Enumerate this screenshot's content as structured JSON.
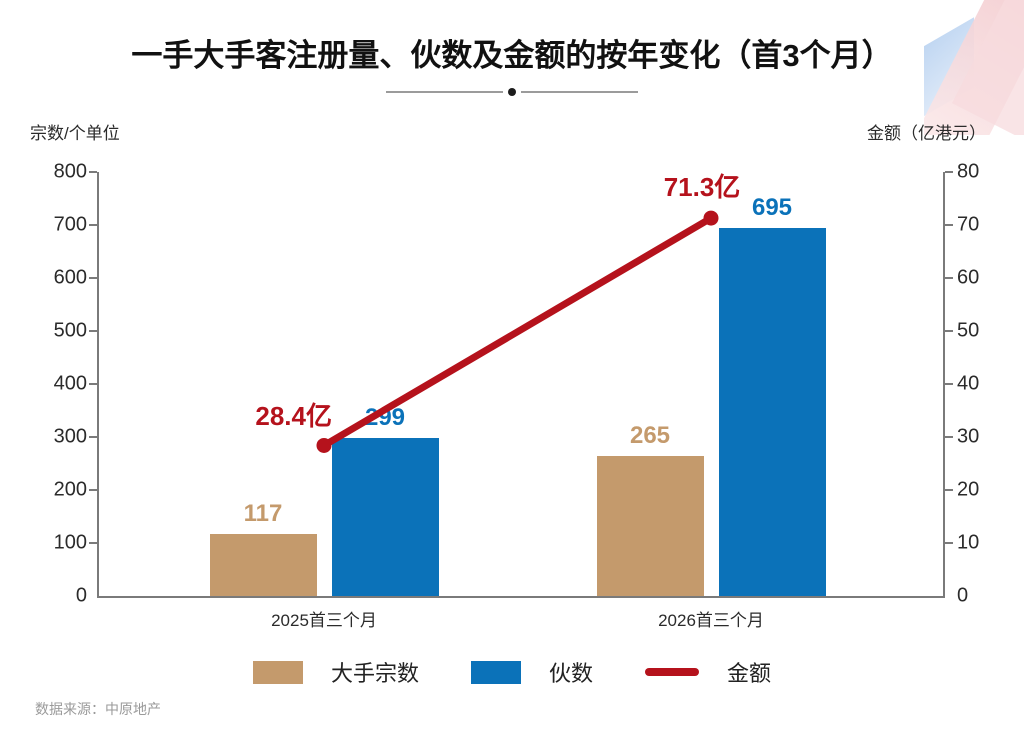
{
  "header": {
    "title": "一手大手客注册量、伙数及金额的按年变化（首3个月）"
  },
  "chart_data": {
    "type": "bar+line",
    "categories": [
      "2025首三个月",
      "2026首三个月"
    ],
    "series": [
      {
        "name": "大手宗数",
        "type": "bar",
        "axis": "left",
        "color": "#c49a6c",
        "values": [
          117,
          265
        ],
        "value_labels": [
          "117",
          "265"
        ]
      },
      {
        "name": "伙数",
        "type": "bar",
        "axis": "left",
        "color": "#0b72b9",
        "values": [
          299,
          695
        ],
        "value_labels": [
          "299",
          "695"
        ]
      },
      {
        "name": "金额",
        "type": "line",
        "axis": "right",
        "color": "#b5121c",
        "values": [
          28.4,
          71.3
        ],
        "value_labels": [
          "28.4亿",
          "71.3亿"
        ]
      }
    ],
    "left_axis": {
      "label": "宗数/个单位",
      "min": 0,
      "max": 800,
      "step": 100,
      "ticks": [
        "800",
        "700",
        "600",
        "500",
        "400",
        "300",
        "200",
        "100",
        "0"
      ]
    },
    "right_axis": {
      "label": "金额（亿港元）",
      "min": 0,
      "max": 80,
      "step": 10,
      "ticks": [
        "80",
        "70",
        "60",
        "50",
        "40",
        "30",
        "20",
        "10",
        "0"
      ]
    },
    "grid": false,
    "legend_position": "bottom"
  },
  "legend": [
    {
      "label": "大手宗数",
      "swatch": "bar",
      "color": "#c49a6c"
    },
    {
      "label": "伙数",
      "swatch": "bar",
      "color": "#0b72b9"
    },
    {
      "label": "金额",
      "swatch": "line",
      "color": "#b5121c"
    }
  ],
  "footer": {
    "source": "数据来源：中原地产"
  },
  "colors": {
    "title": "#111111",
    "axis_line": "#7a7a7a",
    "tick_text": "#2b2b2b",
    "source_text": "#9a9a9a",
    "decoration_pink": "#f6d7da",
    "decoration_blue": "#c9dcf3"
  }
}
